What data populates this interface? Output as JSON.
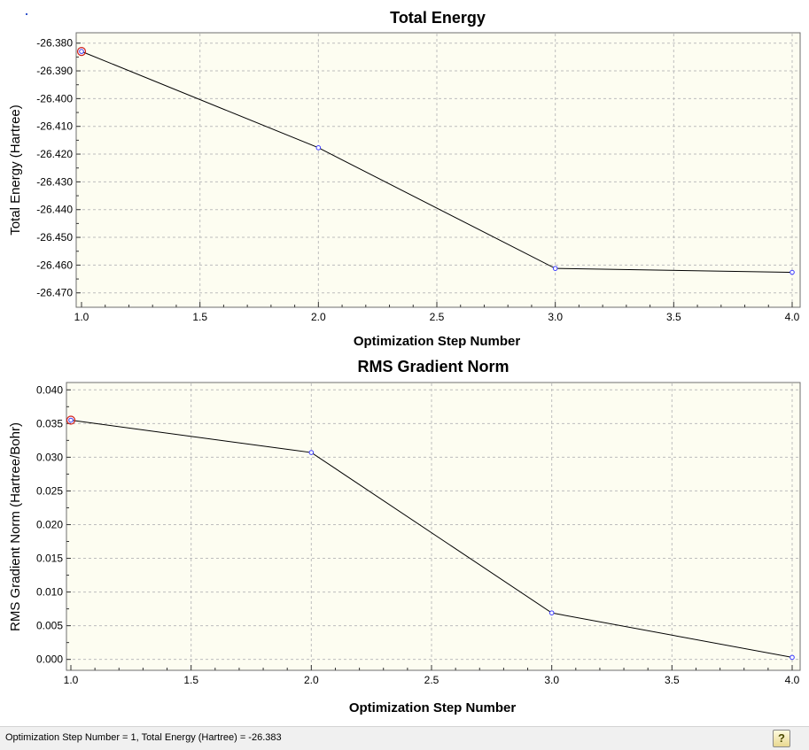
{
  "colors": {
    "plot_background": "#fdfdf1",
    "grid": "#bdbdbd",
    "line": "#000000",
    "marker": "#3a3aff",
    "selected_marker": "#d02020"
  },
  "chart_data": [
    {
      "type": "line",
      "title": "Total Energy",
      "xlabel": "Optimization Step Number",
      "ylabel": "Total Energy (Hartree)",
      "x": [
        1.0,
        2.0,
        3.0,
        4.0
      ],
      "y": [
        -26.383,
        -26.4177,
        -26.4612,
        -26.4626
      ],
      "xlim": [
        1.0,
        4.0
      ],
      "ylim": [
        -26.472,
        -26.3785
      ],
      "xticks": [
        1.0,
        1.5,
        2.0,
        2.5,
        3.0,
        3.5,
        4.0
      ],
      "xtick_labels": [
        "1.0",
        "1.5",
        "2.0",
        "2.5",
        "3.0",
        "3.5",
        "4.0"
      ],
      "yticks": [
        -26.38,
        -26.39,
        -26.4,
        -26.41,
        -26.42,
        -26.43,
        -26.44,
        -26.45,
        -26.46,
        -26.47
      ],
      "ytick_labels": [
        "-26.380",
        "-26.390",
        "-26.400",
        "-26.410",
        "-26.420",
        "-26.430",
        "-26.440",
        "-26.450",
        "-26.460",
        "-26.470"
      ],
      "grid": true,
      "selected_index": 0
    },
    {
      "type": "line",
      "title": "RMS Gradient Norm",
      "xlabel": "Optimization Step Number",
      "ylabel": "RMS Gradient Norm (Hartree/Bohr)",
      "x": [
        1.0,
        2.0,
        3.0,
        4.0
      ],
      "y": [
        0.0355,
        0.0307,
        0.0069,
        0.0003
      ],
      "xlim": [
        1.0,
        4.0
      ],
      "ylim": [
        -0.0007,
        0.0403
      ],
      "xticks": [
        1.0,
        1.5,
        2.0,
        2.5,
        3.0,
        3.5,
        4.0
      ],
      "xtick_labels": [
        "1.0",
        "1.5",
        "2.0",
        "2.5",
        "3.0",
        "3.5",
        "4.0"
      ],
      "yticks": [
        0.0,
        0.005,
        0.01,
        0.015,
        0.02,
        0.025,
        0.03,
        0.035,
        0.04
      ],
      "ytick_labels": [
        "0.000",
        "0.005",
        "0.010",
        "0.015",
        "0.020",
        "0.025",
        "0.030",
        "0.035",
        "0.040"
      ],
      "grid": true,
      "selected_index": 0
    }
  ],
  "status": {
    "text": "Optimization Step Number = 1, Total Energy (Hartree) = -26.383",
    "help_icon": "help-icon",
    "help_glyph": "?"
  }
}
